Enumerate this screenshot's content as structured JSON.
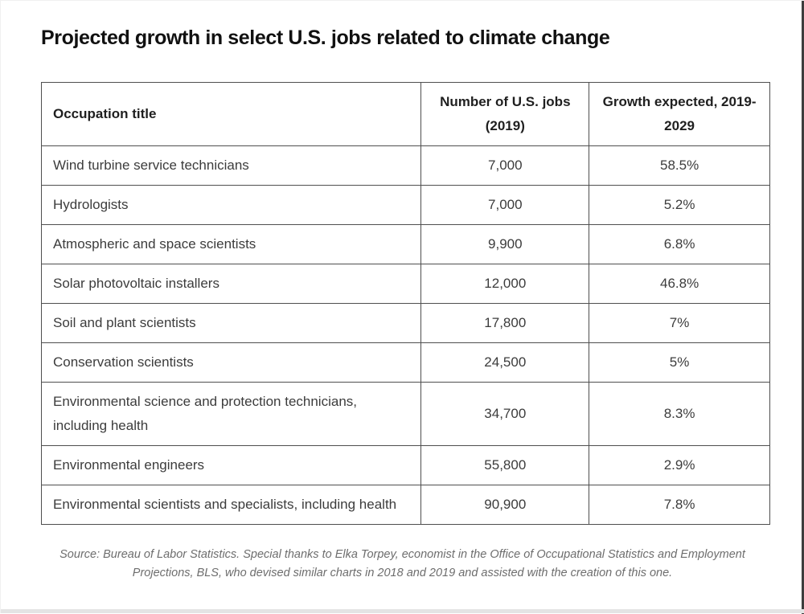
{
  "title": "Projected growth in select U.S. jobs related to climate change",
  "table": {
    "columns_display": {
      "occupation": "Occupation title",
      "jobs": "Number of U.S. jobs\n(2019)",
      "growth": "Growth expected, 2019-\n2029"
    },
    "rows": [
      {
        "occupation": "Wind turbine service technicians",
        "jobs": "7,000",
        "growth": "58.5%"
      },
      {
        "occupation": "Hydrologists",
        "jobs": "7,000",
        "growth": "5.2%"
      },
      {
        "occupation": "Atmospheric and space scientists",
        "jobs": "9,900",
        "growth": "6.8%"
      },
      {
        "occupation": "Solar photovoltaic installers",
        "jobs": "12,000",
        "growth": "46.8%"
      },
      {
        "occupation": "Soil and plant scientists",
        "jobs": "17,800",
        "growth": "7%"
      },
      {
        "occupation": "Conservation scientists",
        "jobs": "24,500",
        "growth": "5%"
      },
      {
        "occupation": "Environmental science and protection technicians, including health",
        "jobs": "34,700",
        "growth": "8.3%"
      },
      {
        "occupation": "Environmental engineers",
        "jobs": "55,800",
        "growth": "2.9%"
      },
      {
        "occupation": "Environmental scientists and specialists, including health",
        "jobs": "90,900",
        "growth": "7.8%"
      }
    ]
  },
  "source_note": "Source: Bureau of Labor Statistics. Special thanks to Elka Torpey, economist in the Office of Occupational Statistics and Employment Projections, BLS, who devised similar charts in 2018 and 2019 and assisted with the creation of this one.",
  "colors": {
    "title_text": "#111111",
    "header_text": "#1f1f1f",
    "body_text": "#3c3c3c",
    "table_border": "#4f4f4f",
    "source_text": "#6d6d6d",
    "background": "#ffffff"
  },
  "chart_data": {
    "type": "table",
    "title": "Projected growth in select U.S. jobs related to climate change",
    "columns": [
      "Occupation title",
      "Number of U.S. jobs (2019)",
      "Growth expected, 2019-2029"
    ],
    "rows": [
      [
        "Wind turbine service technicians",
        7000,
        58.5
      ],
      [
        "Hydrologists",
        7000,
        5.2
      ],
      [
        "Atmospheric and space scientists",
        9900,
        6.8
      ],
      [
        "Solar photovoltaic installers",
        12000,
        46.8
      ],
      [
        "Soil and plant scientists",
        17800,
        7.0
      ],
      [
        "Conservation scientists",
        24500,
        5.0
      ],
      [
        "Environmental science and protection technicians, including health",
        34700,
        8.3
      ],
      [
        "Environmental engineers",
        55800,
        2.9
      ],
      [
        "Environmental scientists and specialists, including health",
        90900,
        7.8
      ]
    ],
    "source": "Bureau of Labor Statistics"
  }
}
